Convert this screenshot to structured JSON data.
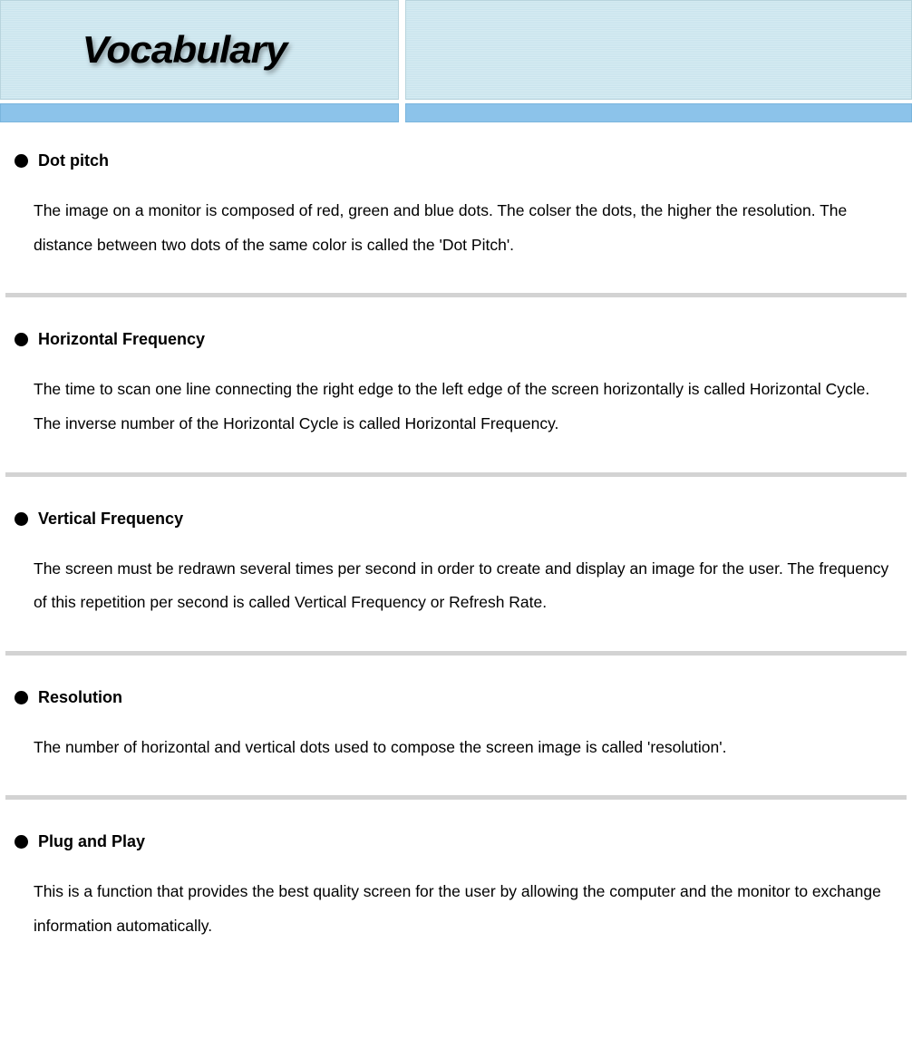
{
  "header": {
    "title": "Vocabulary",
    "stripe_bg_light": "#d5ebf2",
    "stripe_bg_dark": "#cae4ed",
    "blue_strip_color": "#8cc3ea"
  },
  "divider_color": "#d3d3d3",
  "terms": [
    {
      "title": "Dot pitch",
      "description": "The image on a monitor is composed of red, green and blue dots. The colser the dots, the higher the resolution. The distance between two dots of the same color is called the 'Dot Pitch'."
    },
    {
      "title": "Horizontal Frequency",
      "description": "The time to scan one line connecting the right edge to the left edge of the screen horizontally is called Horizontal Cycle. The inverse number of the Horizontal Cycle is called Horizontal Frequency."
    },
    {
      "title": "Vertical Frequency",
      "description": "The screen must be redrawn several times per second in order to create and display an image for the user. The frequency of this repetition per second is called Vertical Frequency or Refresh Rate."
    },
    {
      "title": "Resolution",
      "description": "The number of horizontal and vertical dots used to compose the screen image is called 'resolution'."
    },
    {
      "title": "Plug and Play",
      "description": "This is a function  that provides the best quality screen for the user by allowing the computer and the monitor to exchange information automatically."
    }
  ]
}
